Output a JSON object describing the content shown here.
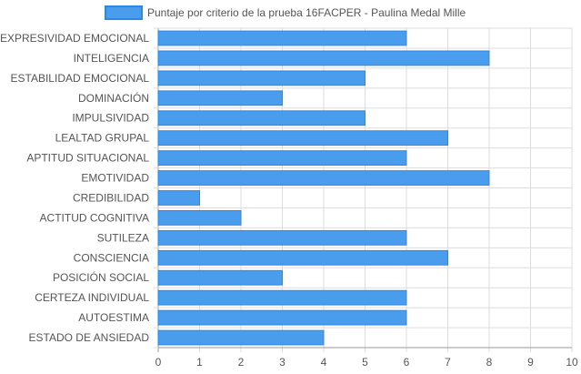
{
  "chart_data": {
    "type": "bar",
    "orientation": "horizontal",
    "categories": [
      "EXPRESIVIDAD EMOCIONAL",
      "INTELIGENCIA",
      "ESTABILIDAD EMOCIONAL",
      "DOMINACIÓN",
      "IMPULSIVIDAD",
      "LEALTAD GRUPAL",
      "APTITUD SITUACIONAL",
      "EMOTIVIDAD",
      "CREDIBILIDAD",
      "ACTITUD COGNITIVA",
      "SUTILEZA",
      "CONSCIENCIA",
      "POSICIÓN SOCIAL",
      "CERTEZA INDIVIDUAL",
      "AUTOESTIMA",
      "ESTADO DE ANSIEDAD"
    ],
    "series": [
      {
        "name": "Puntaje por criterio de la prueba 16FACPER - Paulina Medal Mille",
        "values": [
          6,
          8,
          5,
          3,
          5,
          7,
          6,
          8,
          1,
          2,
          6,
          7,
          3,
          6,
          6,
          4
        ]
      }
    ],
    "xlim": [
      0,
      10
    ],
    "xticks": [
      "0",
      "1",
      "2",
      "3",
      "4",
      "5",
      "6",
      "7",
      "8",
      "9",
      "10"
    ],
    "grid": true,
    "legend_position": "top",
    "colors": {
      "bar_fill": "#4a9ded",
      "bar_stroke": "#2b88e6",
      "grid": "#dddddd",
      "axis": "#999999",
      "text": "#555555"
    }
  }
}
